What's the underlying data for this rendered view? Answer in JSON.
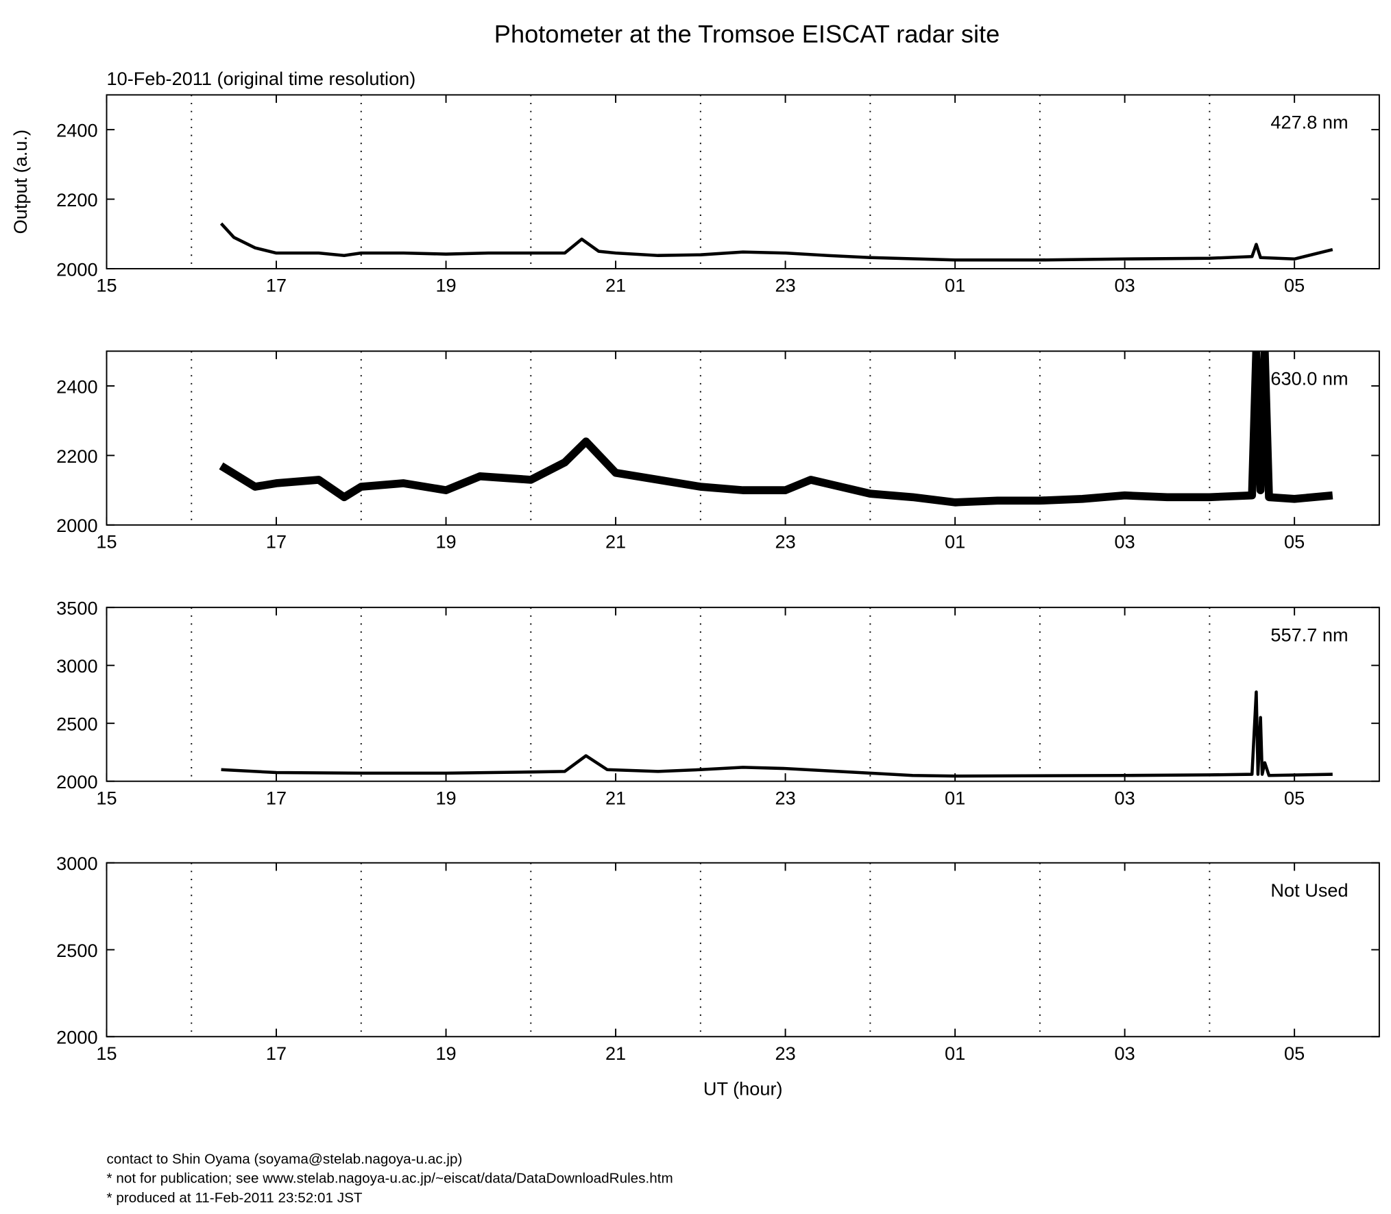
{
  "title": "Photometer at the Tromsoe EISCAT radar site",
  "subtitle": "10-Feb-2011 (original time resolution)",
  "footer": [
    "contact to Shin Oyama (soyama@stelab.nagoya-u.ac.jp)",
    "* not for publication; see www.stelab.nagoya-u.ac.jp/~eiscat/data/DataDownloadRules.htm",
    "* produced at 11-Feb-2011 23:52:01 JST"
  ],
  "chart_data": [
    {
      "type": "line",
      "annotation": "427.8 nm",
      "ylabel": "Output (a.u.)",
      "color": "#000000",
      "xlim": [
        15,
        30
      ],
      "xticks": [
        15,
        17,
        19,
        21,
        23,
        {
          "value": 25,
          "label": "01"
        },
        {
          "value": 27,
          "label": "03"
        },
        {
          "value": 29,
          "label": "05"
        }
      ],
      "xgrid": [
        16,
        18,
        20,
        22,
        24,
        26,
        28
      ],
      "ylim": [
        2000,
        2500
      ],
      "yticks": [
        2000,
        2200,
        2400
      ],
      "x": [
        16.35,
        16.5,
        16.75,
        17,
        17.5,
        17.8,
        18,
        18.5,
        19,
        19.5,
        20,
        20.4,
        20.6,
        20.8,
        21,
        21.5,
        22,
        22.5,
        23,
        23.5,
        24,
        25,
        26,
        27,
        28,
        28.5,
        28.55,
        28.6,
        29,
        29.45
      ],
      "values": [
        2130,
        2090,
        2060,
        2045,
        2045,
        2038,
        2045,
        2045,
        2042,
        2045,
        2045,
        2045,
        2085,
        2050,
        2045,
        2038,
        2040,
        2048,
        2045,
        2038,
        2032,
        2025,
        2025,
        2028,
        2030,
        2035,
        2070,
        2032,
        2028,
        2055
      ]
    },
    {
      "type": "line",
      "annotation": "630.0 nm",
      "color": "#000000",
      "xlim": [
        15,
        30
      ],
      "xticks": [
        15,
        17,
        19,
        21,
        23,
        {
          "value": 25,
          "label": "01"
        },
        {
          "value": 27,
          "label": "03"
        },
        {
          "value": 29,
          "label": "05"
        }
      ],
      "xgrid": [
        16,
        18,
        20,
        22,
        24,
        26,
        28
      ],
      "ylim": [
        2000,
        2500
      ],
      "yticks": [
        2000,
        2200,
        2400
      ],
      "x": [
        16.35,
        16.75,
        17,
        17.5,
        17.8,
        18,
        18.5,
        19,
        19.4,
        20,
        20.4,
        20.65,
        21,
        21.5,
        22,
        22.5,
        23,
        23.3,
        24,
        24.5,
        25,
        25.5,
        26,
        26.5,
        27,
        27.5,
        28,
        28.5,
        28.55,
        28.6,
        28.65,
        28.7,
        29,
        29.45
      ],
      "values": [
        2170,
        2110,
        2120,
        2130,
        2080,
        2110,
        2120,
        2100,
        2140,
        2130,
        2180,
        2240,
        2150,
        2130,
        2110,
        2100,
        2100,
        2130,
        2090,
        2080,
        2065,
        2070,
        2070,
        2075,
        2085,
        2080,
        2080,
        2085,
        2500,
        2100,
        2500,
        2080,
        2075,
        2085
      ]
    },
    {
      "type": "line",
      "annotation": "557.7 nm",
      "color": "#000000",
      "xlim": [
        15,
        30
      ],
      "xticks": [
        15,
        17,
        19,
        21,
        23,
        {
          "value": 25,
          "label": "01"
        },
        {
          "value": 27,
          "label": "03"
        },
        {
          "value": 29,
          "label": "05"
        }
      ],
      "xgrid": [
        16,
        18,
        20,
        22,
        24,
        26,
        28
      ],
      "ylim": [
        2000,
        3500
      ],
      "yticks": [
        2000,
        2500,
        3000,
        3500
      ],
      "x": [
        16.35,
        17,
        18,
        19,
        20,
        20.4,
        20.65,
        20.9,
        21.5,
        22,
        22.5,
        23,
        23.5,
        24,
        24.5,
        25,
        27,
        28,
        28.5,
        28.55,
        28.57,
        28.6,
        28.62,
        28.65,
        28.7,
        29.45
      ],
      "values": [
        2100,
        2075,
        2070,
        2070,
        2080,
        2085,
        2220,
        2100,
        2085,
        2100,
        2120,
        2110,
        2090,
        2070,
        2050,
        2045,
        2050,
        2055,
        2060,
        2770,
        2060,
        2550,
        2060,
        2160,
        2050,
        2060
      ]
    },
    {
      "type": "line",
      "annotation": "Not Used",
      "xlabel": "UT (hour)",
      "color": "#000000",
      "xlim": [
        15,
        30
      ],
      "xticks": [
        15,
        17,
        19,
        21,
        23,
        {
          "value": 25,
          "label": "01"
        },
        {
          "value": 27,
          "label": "03"
        },
        {
          "value": 29,
          "label": "05"
        }
      ],
      "xgrid": [
        16,
        18,
        20,
        22,
        24,
        26,
        28
      ],
      "ylim": [
        2000,
        3000
      ],
      "yticks": [
        2000,
        2500,
        3000
      ],
      "x": [],
      "values": []
    }
  ]
}
